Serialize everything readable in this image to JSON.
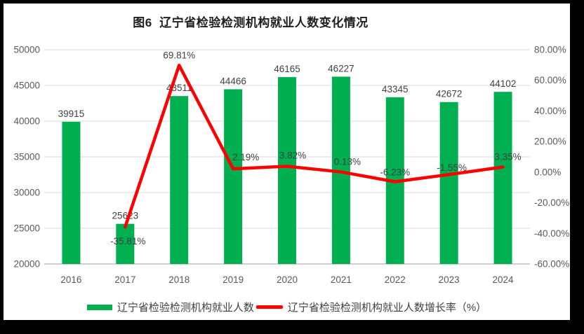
{
  "chart_data": {
    "type": "bar+line",
    "title": "图6  辽宁省检验检测机构就业人数变化情况",
    "categories": [
      "2016",
      "2017",
      "2018",
      "2019",
      "2020",
      "2021",
      "2022",
      "2023",
      "2024"
    ],
    "series": [
      {
        "name": "辽宁省检验检测机构就业人数",
        "type": "bar",
        "axis": "left",
        "values": [
          39915,
          25623,
          43511,
          44466,
          46165,
          46227,
          43345,
          42672,
          44102
        ],
        "labels": [
          "39915",
          "25623",
          "43511",
          "44466",
          "46165",
          "46227",
          "43345",
          "42672",
          "44102"
        ]
      },
      {
        "name": "辽宁省检验检测机构就业人数增长率（%）",
        "type": "line",
        "axis": "right",
        "values": [
          null,
          -35.81,
          69.81,
          2.19,
          3.82,
          0.13,
          -6.23,
          -1.55,
          3.35
        ],
        "labels": [
          "",
          "-35.81%",
          "69.81%",
          "2.19%",
          "3.82%",
          "0.13%",
          "-6.23%",
          "-1.55%",
          "3.35%"
        ]
      }
    ],
    "left_axis": {
      "min": 20000,
      "max": 50000,
      "step": 5000,
      "ticks": [
        "50000",
        "45000",
        "40000",
        "35000",
        "30000",
        "25000",
        "20000"
      ]
    },
    "right_axis": {
      "min": -60,
      "max": 80,
      "step": 20,
      "ticks": [
        "80.00%",
        "60.00%",
        "40.00%",
        "20.00%",
        "0.00%",
        "-20.00%",
        "-40.00%",
        "-60.00%"
      ]
    },
    "legend": [
      {
        "label": "辽宁省检验检测机构就业人数",
        "swatch": "bar"
      },
      {
        "label": "辽宁省检验检测机构就业人数增长率（%）",
        "swatch": "line"
      }
    ],
    "grid": "horizontal",
    "legend_position": "bottom",
    "colors": {
      "bar": "#00B050",
      "line": "#FF0000",
      "grid": "#D9D9D9",
      "axis_line": "#BFBFBF",
      "axis_label": "#595959",
      "data_label": "#404040",
      "title": "#1F1F1F",
      "frame": "#000000",
      "card": "#FFFFFF"
    }
  }
}
